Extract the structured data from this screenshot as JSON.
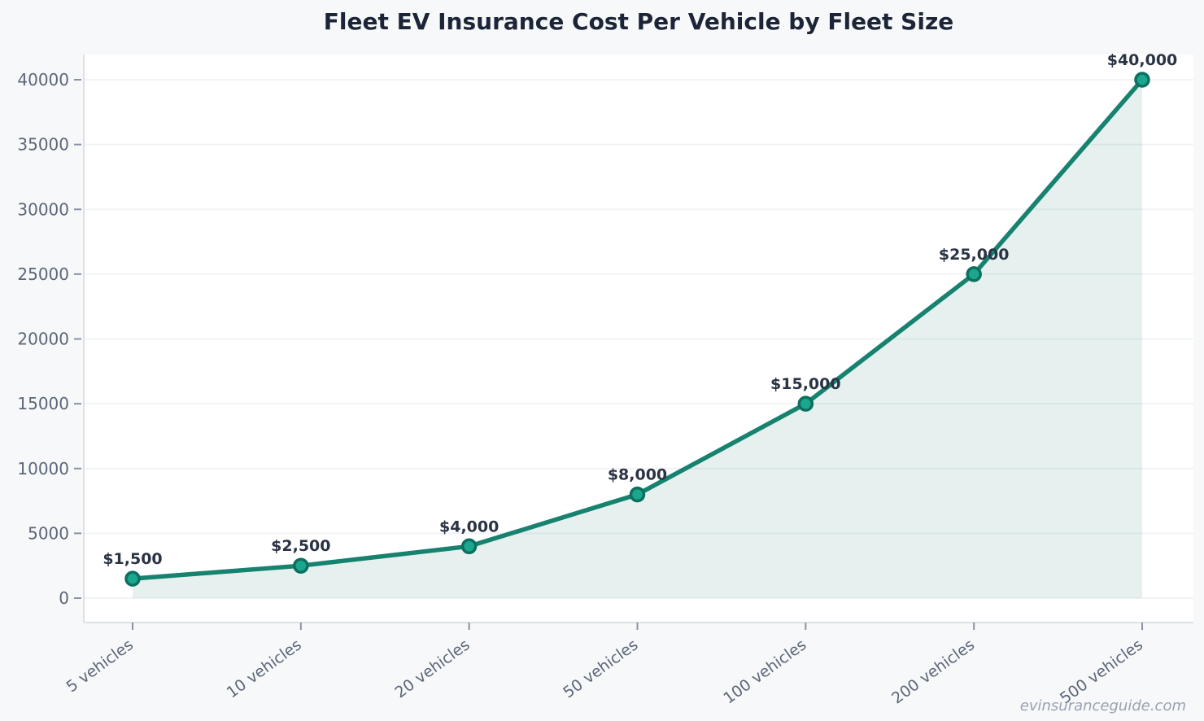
{
  "title": "Fleet EV Insurance Cost Per Vehicle by Fleet Size",
  "watermark": "evinsuranceguide.com",
  "colors": {
    "background": "#f6f8fa",
    "plot_background": "#ffffff",
    "gridline": "#f2f3f5",
    "spine": "#dde1e7",
    "tick_mark": "#8a93a3",
    "tick_text": "#5c6677",
    "line": "#17826f",
    "marker_fill": "#1ba68e",
    "marker_edge": "#0d6f60",
    "area_fill": "rgba(23,130,111,0.11)",
    "point_label_text": "#2a3344",
    "title_text": "#1c2437",
    "watermark_text": "#9aa3b2"
  },
  "chart_data": {
    "type": "line",
    "title": "Fleet EV Insurance Cost Per Vehicle by Fleet Size",
    "xlabel": "",
    "ylabel": "",
    "categories": [
      "5 vehicles",
      "10 vehicles",
      "20 vehicles",
      "50 vehicles",
      "100 vehicles",
      "200 vehicles",
      "500 vehicles"
    ],
    "values": [
      1500,
      2500,
      4000,
      8000,
      15000,
      25000,
      40000
    ],
    "point_labels": [
      "$1,500",
      "$2,500",
      "$4,000",
      "$8,000",
      "$15,000",
      "$25,000",
      "$40,000"
    ],
    "yticks": [
      0,
      5000,
      10000,
      15000,
      20000,
      25000,
      30000,
      35000,
      40000
    ],
    "ylim": [
      0,
      42000
    ],
    "grid": true,
    "area_fill": true,
    "markers": true,
    "legend_position": "none",
    "x_tick_rotation": -36
  }
}
